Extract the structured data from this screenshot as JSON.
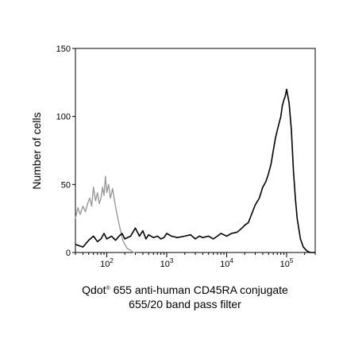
{
  "chart_data": {
    "type": "line",
    "ylabel": "Number of cells",
    "xlabel": {
      "brand": "Qdot",
      "mark": "®",
      "line1_rest": " 655 anti-human CD45RA conjugate",
      "line2": "655/20 band pass filter"
    },
    "x_scale": "log",
    "xlim": [
      30,
      300000
    ],
    "ylim": [
      0,
      150
    ],
    "y_ticks": [
      {
        "value": 0,
        "label": "0"
      },
      {
        "value": 50,
        "label": "50"
      },
      {
        "value": 100,
        "label": "100"
      },
      {
        "value": 150,
        "label": "150"
      }
    ],
    "x_major_ticks": [
      {
        "value": 100,
        "base": "10",
        "exp": "2"
      },
      {
        "value": 1000,
        "base": "10",
        "exp": "3"
      },
      {
        "value": 10000,
        "base": "10",
        "exp": "4"
      },
      {
        "value": 100000,
        "base": "10",
        "exp": "5"
      }
    ],
    "grid": false,
    "legend": "none",
    "series": [
      {
        "color": "#999999",
        "x": [
          30,
          33,
          36,
          40,
          44,
          48,
          52,
          56,
          60,
          65,
          70,
          75,
          80,
          85,
          90,
          95,
          100,
          107,
          115,
          125,
          135,
          145,
          155,
          170,
          185,
          200,
          220,
          240,
          260,
          280,
          300
        ],
        "y": [
          25,
          33,
          28,
          34,
          30,
          36,
          40,
          34,
          48,
          38,
          44,
          36,
          40,
          48,
          42,
          56,
          44,
          50,
          40,
          47,
          38,
          30,
          24,
          16,
          9,
          6,
          3,
          2,
          1,
          0,
          0
        ]
      },
      {
        "color": "#000000",
        "x": [
          30,
          40,
          50,
          60,
          70,
          80,
          90,
          100,
          120,
          140,
          160,
          180,
          200,
          250,
          300,
          350,
          400,
          450,
          500,
          600,
          700,
          800,
          900,
          1000,
          1200,
          1500,
          2000,
          2500,
          3000,
          3500,
          4000,
          5000,
          6000,
          7000,
          8000,
          9000,
          10000,
          12000,
          15000,
          18000,
          20000,
          23000,
          26000,
          30000,
          35000,
          40000,
          45000,
          50000,
          55000,
          60000,
          65000,
          70000,
          75000,
          80000,
          85000,
          90000,
          95000,
          100000,
          110000,
          120000,
          130000,
          140000,
          150000,
          170000,
          190000,
          220000,
          250000,
          300000
        ],
        "y": [
          6,
          4,
          9,
          12,
          8,
          10,
          14,
          10,
          12,
          9,
          12,
          14,
          10,
          12,
          18,
          12,
          16,
          10,
          13,
          11,
          12,
          10,
          11,
          14,
          12,
          11,
          12,
          13,
          10,
          12,
          11,
          12,
          10,
          12,
          14,
          13,
          12,
          14,
          15,
          18,
          20,
          22,
          28,
          35,
          40,
          48,
          52,
          58,
          65,
          75,
          84,
          90,
          95,
          100,
          108,
          112,
          115,
          120,
          110,
          90,
          60,
          40,
          25,
          10,
          4,
          1,
          0,
          0
        ]
      }
    ]
  }
}
